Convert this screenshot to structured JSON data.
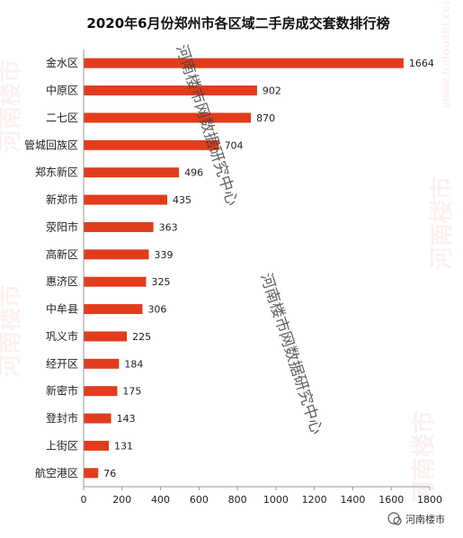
{
  "chart_data": {
    "type": "bar",
    "orientation": "horizontal",
    "title": "2020年6月份郑州市各区域二手房成交套数排行榜",
    "categories": [
      "金水区",
      "中原区",
      "二七区",
      "管城回族区",
      "郑东新区",
      "新郑市",
      "荥阳市",
      "高新区",
      "惠济区",
      "中牟县",
      "巩义市",
      "经开区",
      "新密市",
      "登封市",
      "上街区",
      "航空港区"
    ],
    "values": [
      1664,
      902,
      870,
      704,
      496,
      435,
      363,
      339,
      325,
      306,
      225,
      184,
      175,
      143,
      131,
      76
    ],
    "xlim": [
      0,
      1800
    ],
    "xticks": [
      0,
      200,
      400,
      600,
      800,
      1000,
      1200,
      1400,
      1600,
      1800
    ],
    "xlabel": "",
    "ylabel": "",
    "grid": false,
    "bar_color": "#e23c1c"
  },
  "watermark": {
    "diagonal_text": "河南楼市网数据研究中心",
    "background_text": "河南楼市",
    "background_url": "www.hnloushi.com",
    "logo_text": "河南楼市"
  }
}
